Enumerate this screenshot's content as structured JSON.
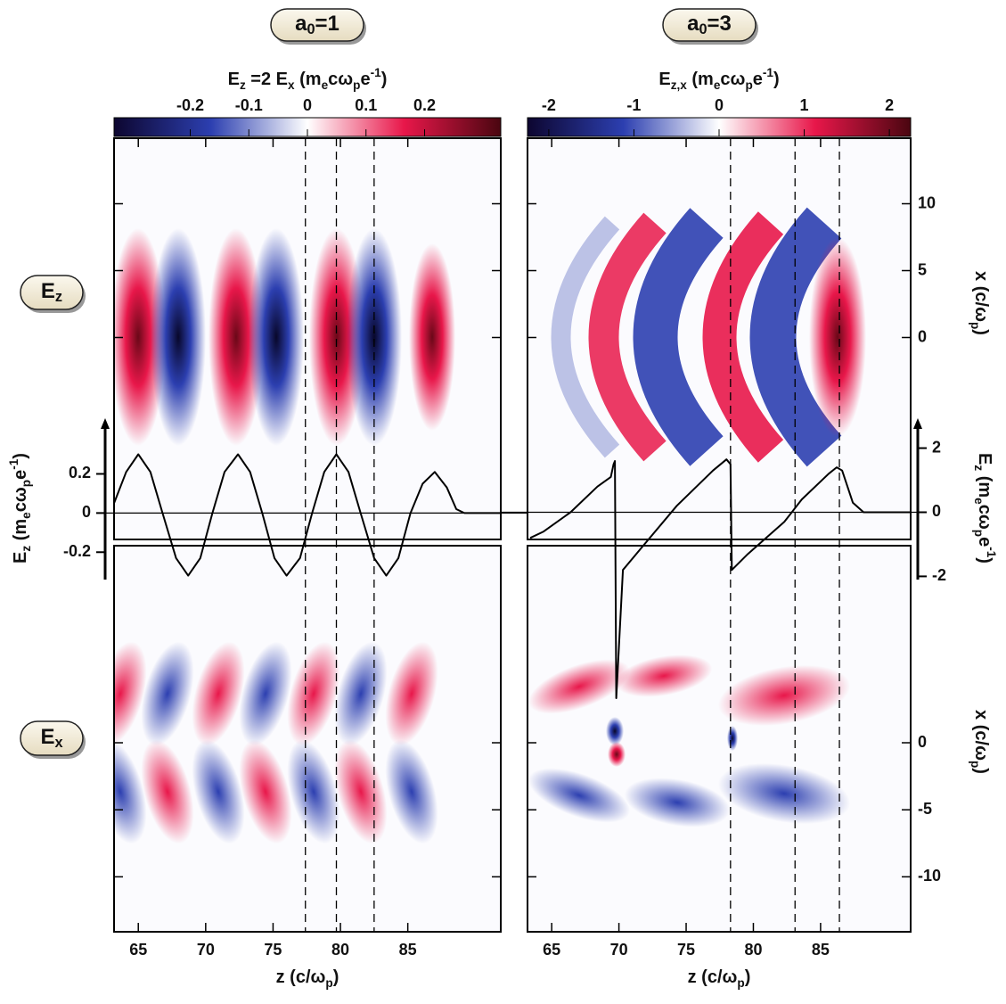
{
  "chart_data": [
    {
      "type": "field-map",
      "title": [
        "a",
        {
          "sub": "0"
        },
        "=1"
      ],
      "colorbar_label": [
        "E",
        {
          "sub": "z"
        },
        " =2 E",
        {
          "sub": "x"
        },
        "  (m",
        {
          "sub": "e"
        },
        "cω",
        {
          "sub": "p"
        },
        "e",
        {
          "sup": "-1"
        },
        ")"
      ],
      "clim": [
        -0.33,
        0.33
      ],
      "cticks": [
        -0.2,
        -0.1,
        0,
        0.1,
        0.2
      ],
      "xlabel": [
        "z (c/ω",
        {
          "sub": "p"
        },
        ")"
      ],
      "xlim": [
        63.2,
        91.9
      ],
      "xticks": [
        65,
        70,
        75,
        80,
        85
      ],
      "markers": [
        77.4,
        79.7,
        82.5
      ],
      "lineout": {
        "ylabel": [
          "E",
          {
            "sub": "z"
          },
          " (m",
          {
            "sub": "e"
          },
          "cω",
          {
            "sub": "p"
          },
          "e",
          {
            "sup": "-1"
          },
          ")"
        ],
        "ylim": [
          -0.34,
          0.43
        ],
        "yticks": [
          -0.2,
          0,
          0.2
        ],
        "color": "#000000",
        "x": [
          63.2,
          64.1,
          65.0,
          65.9,
          66.8,
          67.8,
          68.7,
          69.6,
          70.5,
          71.4,
          72.4,
          73.3,
          74.2,
          75.1,
          76.0,
          77.0,
          77.9,
          78.8,
          79.7,
          80.6,
          81.5,
          82.5,
          83.4,
          84.3,
          85.2,
          86.1,
          87.0,
          87.9,
          88.6,
          89.2,
          91.9
        ],
        "values": [
          0.05,
          0.21,
          0.3,
          0.21,
          0.0,
          -0.23,
          -0.32,
          -0.23,
          0.0,
          0.21,
          0.3,
          0.21,
          0.0,
          -0.23,
          -0.32,
          -0.23,
          0.0,
          0.21,
          0.3,
          0.21,
          0.0,
          -0.23,
          -0.32,
          -0.23,
          0.0,
          0.15,
          0.21,
          0.13,
          0.02,
          0.0,
          0.0
        ]
      }
    },
    {
      "type": "field-map",
      "title": [
        "a",
        {
          "sub": "0"
        },
        "=3"
      ],
      "colorbar_label": [
        "E",
        {
          "sub": "z,x"
        },
        "  (m",
        {
          "sub": "e"
        },
        "cω",
        {
          "sub": "p"
        },
        "e",
        {
          "sup": "-1"
        },
        ")"
      ],
      "clim": [
        -2.25,
        2.25
      ],
      "cticks": [
        -2,
        -1,
        0,
        1,
        2
      ],
      "xlabel": [
        "z (c/ω",
        {
          "sub": "p"
        },
        ")"
      ],
      "xlim": [
        63.2,
        91.7
      ],
      "xticks": [
        65,
        70,
        75,
        80,
        85
      ],
      "markers": [
        78.3,
        83.1,
        86.4
      ],
      "lineout": {
        "ylabel": [
          "E",
          {
            "sub": "z"
          },
          " (m",
          {
            "sub": "e"
          },
          "cω",
          {
            "sub": "p"
          },
          "e",
          {
            "sup": "-1"
          },
          ")"
        ],
        "ylim": [
          -2.1,
          2.6
        ],
        "yticks": [
          -2,
          0,
          2
        ],
        "color": "#000000",
        "x": [
          63.4,
          64.4,
          66.4,
          68.4,
          69.4,
          69.6,
          69.7,
          69.8,
          70.3,
          71.7,
          74.3,
          77.0,
          78.0,
          78.3,
          78.4,
          79.6,
          82.3,
          83.6,
          85.6,
          86.2,
          86.6,
          87.4,
          88.2,
          91.7
        ],
        "values": [
          -0.8,
          -0.6,
          0.0,
          0.8,
          1.1,
          1.5,
          1.6,
          -5.8,
          -1.8,
          -1.1,
          0.2,
          1.3,
          1.65,
          1.5,
          -1.8,
          -1.3,
          -0.3,
          0.4,
          1.2,
          1.4,
          1.3,
          0.3,
          0.0,
          0.0
        ]
      }
    }
  ],
  "colormap": [
    "#0d0630",
    "#2c3fb0",
    "#ffffff",
    "#e8174a",
    "#4a0610"
  ],
  "row_labels": [
    [
      "E",
      {
        "sub": "z"
      }
    ],
    [
      "E",
      {
        "sub": "x"
      }
    ]
  ],
  "transverse": {
    "label": [
      "x (c/ω",
      {
        "sub": "p"
      },
      ")"
    ],
    "top": {
      "lim": [
        -15.1,
        14.9
      ],
      "ticks": [
        0,
        5,
        10
      ]
    },
    "bottom": {
      "lim": [
        -14.1,
        14.7
      ],
      "ticks": [
        -10,
        -5,
        0
      ]
    }
  }
}
